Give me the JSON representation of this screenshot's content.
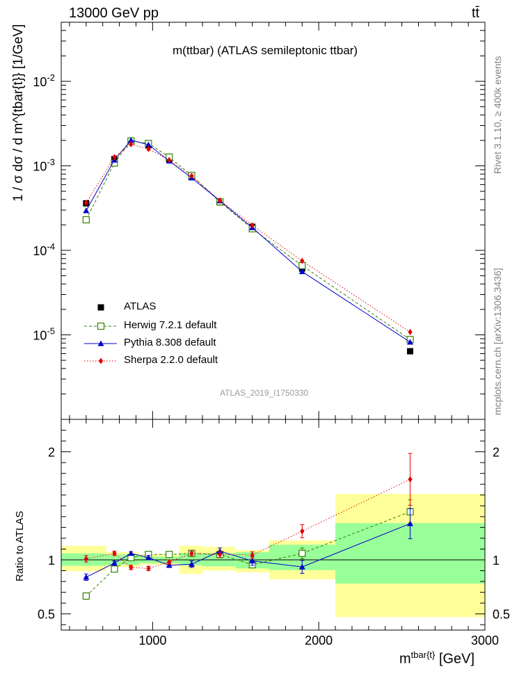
{
  "header": {
    "energy_label": "13000 GeV pp",
    "process_label": "tt̄"
  },
  "plot_title": "m(ttbar) (ATLAS semileptonic ttbar)",
  "watermark": "ATLAS_2019_I1750330",
  "side_labels": {
    "rivet": "Rivet 3.1.10, ≥ 400k events",
    "url": "mcplots.cern.ch [arXiv:1306.3436]"
  },
  "colors": {
    "atlas": "#000000",
    "herwig": "#338000",
    "pythia": "#0000cc",
    "sherpa": "#e00000",
    "band_inner": "#99ff99",
    "band_outer": "#ffff99"
  },
  "chart_data": {
    "type": "scatter",
    "title": "m(ttbar) (ATLAS semileptonic ttbar)",
    "xlabel_main": "m",
    "xlabel_sup": "tbar{t}",
    "xlabel_unit": "[GeV]",
    "ylabel": "1 / σ dσ / d m^{tbar{t}} [1/GeV]",
    "ratio_ylabel": "Ratio to ATLAS",
    "x_scale": "linear",
    "y_scale": "log",
    "xlim": [
      450,
      3000
    ],
    "ylim": [
      1e-06,
      0.05
    ],
    "ratio_ylim": [
      0.35,
      2.3
    ],
    "x_ticks": [
      1000,
      2000,
      3000
    ],
    "x_tick_labels": [
      "1000",
      "2000",
      "3000"
    ],
    "y_ticks": [
      1e-05,
      0.0001,
      0.001,
      0.01
    ],
    "y_tick_labels": [
      "10^-5",
      "10^-4",
      "10^-3",
      "10^-2"
    ],
    "ratio_ticks": [
      0.5,
      1,
      2
    ],
    "ratio_tick_labels": [
      "0.5",
      "1",
      "2"
    ],
    "legend_position": "bottom-left",
    "bins": [
      [
        450,
        720
      ],
      [
        720,
        820
      ],
      [
        820,
        920
      ],
      [
        920,
        1040
      ],
      [
        1040,
        1160
      ],
      [
        1160,
        1300
      ],
      [
        1300,
        1500
      ],
      [
        1500,
        1700
      ],
      [
        1700,
        2100
      ],
      [
        2100,
        3000
      ]
    ],
    "x": [
      600,
      770,
      870,
      975,
      1100,
      1235,
      1405,
      1600,
      1900,
      2550
    ],
    "ratio_bands": {
      "inner": [
        [
          0.945,
          1.06
        ],
        [
          0.955,
          1.05
        ],
        [
          0.955,
          1.05
        ],
        [
          0.97,
          1.03
        ],
        [
          0.97,
          1.03
        ],
        [
          0.95,
          1.06
        ],
        [
          0.94,
          1.06
        ],
        [
          0.92,
          1.07
        ],
        [
          0.905,
          1.14
        ],
        [
          0.78,
          1.34
        ]
      ],
      "outer": [
        [
          0.895,
          1.13
        ],
        [
          0.935,
          1.07
        ],
        [
          0.935,
          1.07
        ],
        [
          0.955,
          1.05
        ],
        [
          0.955,
          1.05
        ],
        [
          0.87,
          1.13
        ],
        [
          0.9,
          1.12
        ],
        [
          0.885,
          1.09
        ],
        [
          0.82,
          1.18
        ],
        [
          0.47,
          1.61
        ]
      ]
    },
    "series": [
      {
        "name": "ATLAS",
        "marker": "square-filled",
        "line": "none",
        "values": [
          0.00036,
          0.0012,
          0.00195,
          0.00176,
          0.0012,
          0.00074,
          0.00037,
          0.00019,
          6.1e-05,
          6.4e-06
        ],
        "ratio": [
          1,
          1,
          1,
          1,
          1,
          1,
          1,
          1,
          1,
          1
        ],
        "ratio_err": [
          0,
          0,
          0,
          0,
          0,
          0,
          0,
          0,
          0,
          0
        ]
      },
      {
        "name": "Herwig 7.2.1 default",
        "marker": "square-open",
        "line": "dashed",
        "values": [
          0.00023,
          0.00108,
          0.00197,
          0.00184,
          0.00127,
          0.00077,
          0.000375,
          0.00018,
          6.6e-05,
          8.8e-06
        ],
        "ratio": [
          0.665,
          0.915,
          1.02,
          1.05,
          1.05,
          1.06,
          1.05,
          0.955,
          1.06,
          1.445
        ],
        "ratio_err": [
          0.03,
          0.02,
          0.02,
          0.02,
          0.02,
          0.02,
          0.02,
          0.03,
          0.05,
          0.11
        ]
      },
      {
        "name": "Pythia 8.308 default",
        "marker": "triangle-filled",
        "line": "solid",
        "values": [
          0.000295,
          0.00117,
          0.00201,
          0.00178,
          0.00114,
          0.00072,
          0.000385,
          0.000186,
          5.6e-05,
          8.2e-06
        ],
        "ratio": [
          0.84,
          0.97,
          1.06,
          1.02,
          0.95,
          0.96,
          1.08,
          0.99,
          0.935,
          1.335
        ],
        "ratio_err": [
          0.03,
          0.02,
          0.015,
          0.02,
          0.02,
          0.03,
          0.03,
          0.04,
          0.06,
          0.14
        ]
      },
      {
        "name": "Sherpa 2.2.0 default",
        "marker": "diamond-filled",
        "line": "dotted",
        "values": [
          0.000365,
          0.00127,
          0.0018,
          0.00158,
          0.00117,
          0.00076,
          0.00039,
          0.000198,
          7.5e-05,
          1.08e-05
        ],
        "ratio": [
          1.01,
          1.06,
          0.93,
          0.92,
          0.98,
          1.06,
          1.05,
          1.045,
          1.265,
          1.745
        ],
        "ratio_err": [
          0.03,
          0.02,
          0.02,
          0.02,
          0.02,
          0.02,
          0.03,
          0.03,
          0.06,
          0.24
        ]
      }
    ]
  }
}
